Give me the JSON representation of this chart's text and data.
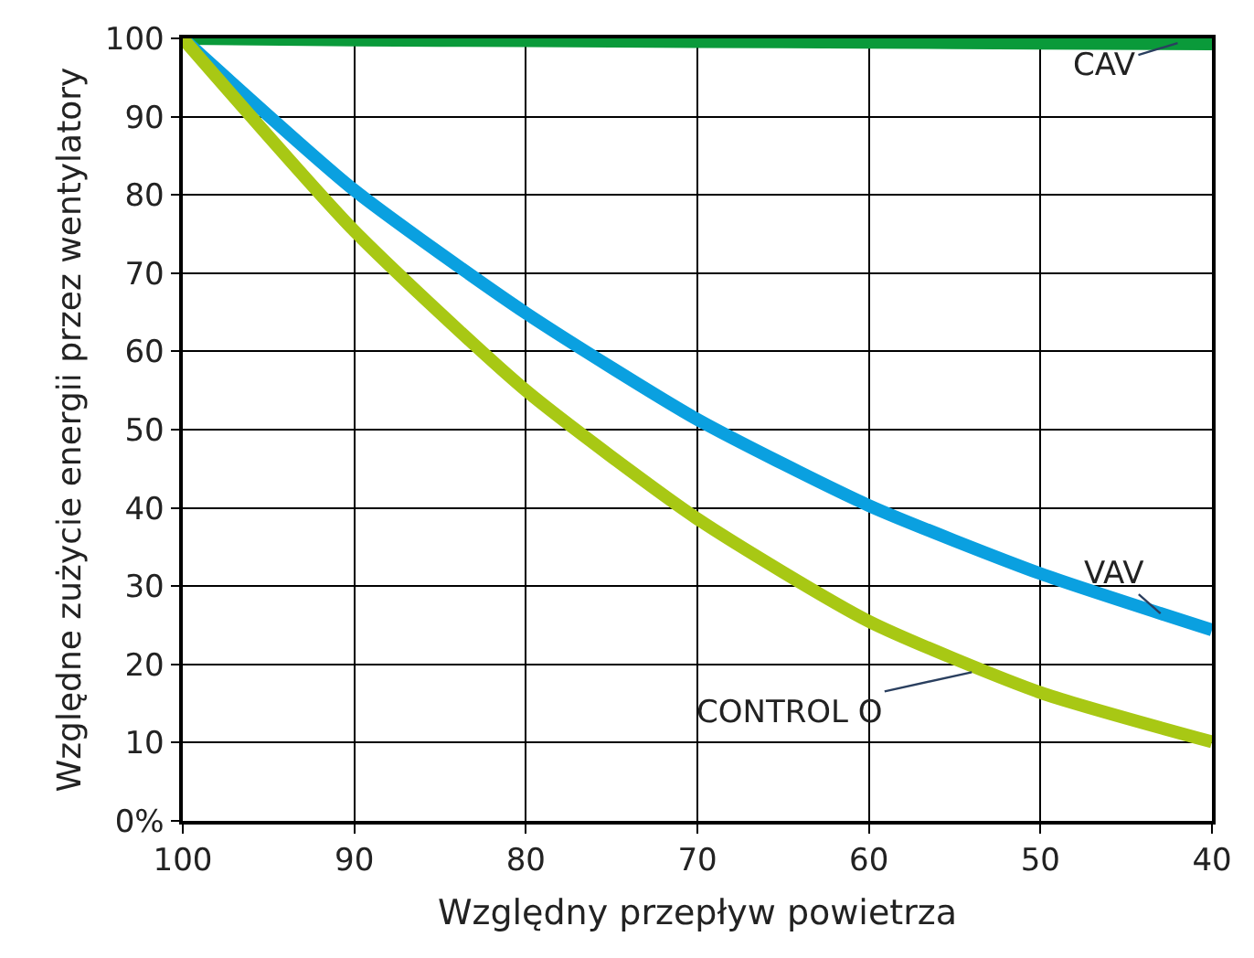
{
  "chart_data": {
    "type": "line",
    "xlabel": "Względny przepływ powietrza",
    "ylabel": "Względne zużycie energii przez wentylatory",
    "x": [
      100,
      90,
      80,
      70,
      60,
      50,
      40
    ],
    "series": [
      {
        "color": "#0a9a3a",
        "values": [
          100,
          99.8,
          99.7,
          99.6,
          99.5,
          99.4,
          99.3
        ]
      },
      {
        "color": "#0aa0e0",
        "values": [
          100,
          80.6,
          64.9,
          51.3,
          40.3,
          31.6,
          24.4
        ]
      },
      {
        "color": "#a8c814",
        "values": [
          100,
          75.4,
          55,
          38.6,
          25.5,
          16.4,
          10.1
        ]
      }
    ],
    "annotations": [
      {
        "text": "CAV",
        "x": 42,
        "y": 99.4
      },
      {
        "text": "VAV",
        "x": 43,
        "y": 26.5
      },
      {
        "text": "CONTROL O",
        "x": 54,
        "y": 19
      }
    ],
    "xlim": [
      100,
      40
    ],
    "xticks": [
      100,
      90,
      80,
      70,
      60,
      50,
      40
    ],
    "ylim": [
      0,
      100
    ],
    "yticks": [
      {
        "value": 0,
        "label": "0%"
      },
      10,
      20,
      30,
      40,
      50,
      60,
      70,
      80,
      90,
      100
    ],
    "grid": true,
    "marker": "none",
    "line_style": "solid"
  }
}
